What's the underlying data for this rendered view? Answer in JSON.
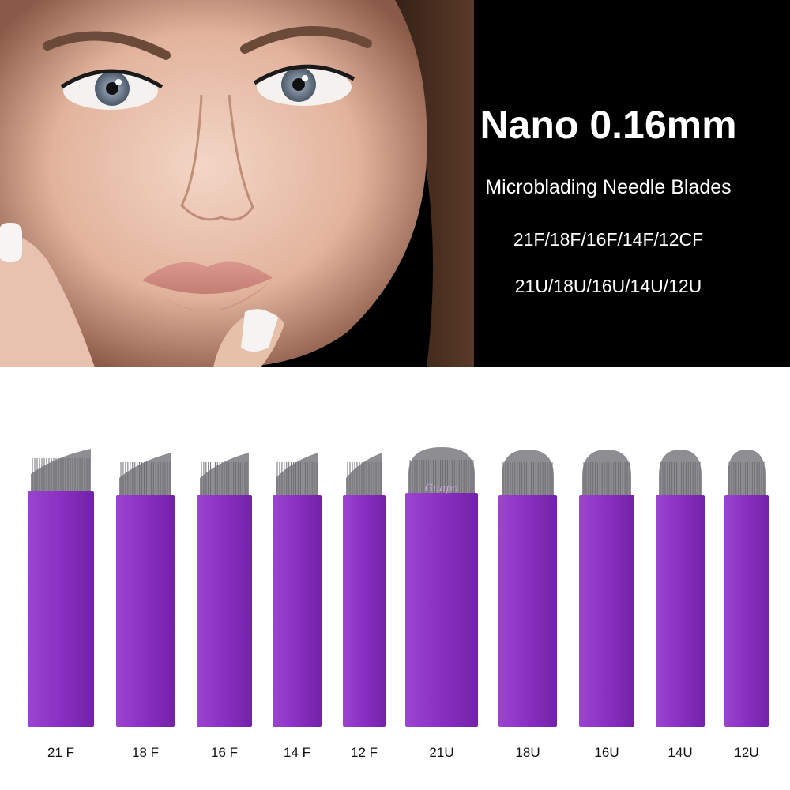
{
  "banner": {
    "headline": "Nano 0.16mm",
    "subtitle": "Microblading Needle Blades",
    "models_f": "21F/18F/16F/14F/12CF",
    "models_u": "21U/18U/16U/14U/12U"
  },
  "watermark": "Guapa",
  "colors": {
    "blade_purple": "#8a2fc2",
    "needle_gray": "#8e8e92",
    "background_top": "#000000",
    "background_bottom": "#ffffff"
  },
  "blades": [
    {
      "label": "21 F",
      "type": "flex-slanted"
    },
    {
      "label": "18 F",
      "type": "flex-slanted"
    },
    {
      "label": "16 F",
      "type": "flex-slanted"
    },
    {
      "label": "14 F",
      "type": "flex-slanted"
    },
    {
      "label": "12 F",
      "type": "flex-slanted"
    },
    {
      "label": "21U",
      "type": "u-shape"
    },
    {
      "label": "18U",
      "type": "u-shape"
    },
    {
      "label": "16U",
      "type": "u-shape"
    },
    {
      "label": "14U",
      "type": "u-shape"
    },
    {
      "label": "12U",
      "type": "u-shape"
    }
  ]
}
